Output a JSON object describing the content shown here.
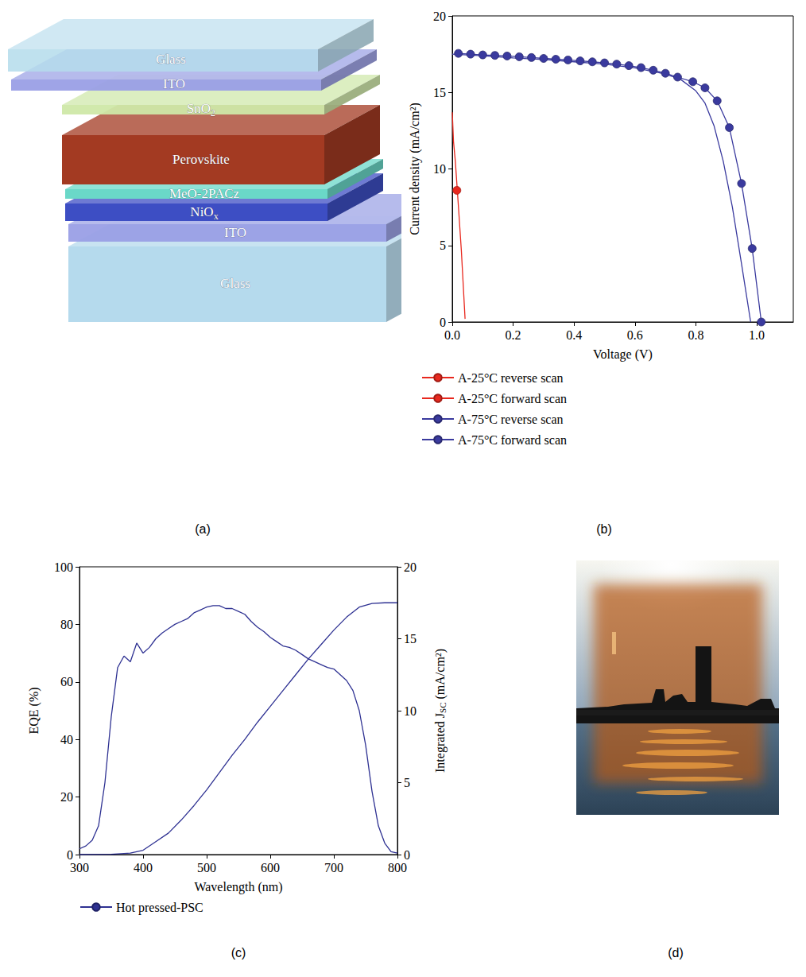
{
  "chart_data": [
    {
      "type": "line",
      "panel_label": "(b)",
      "x_label": "Voltage (V)",
      "y_label": "Current density (mA/cm²)",
      "xlim": [
        0,
        1.12
      ],
      "xticks": [
        {
          "value": 0,
          "label": "0.0"
        },
        0.2,
        0.4,
        0.6,
        0.8,
        {
          "value": 1,
          "label": "1.0"
        }
      ],
      "ylim": [
        0,
        20
      ],
      "yticks": [
        0,
        5,
        10,
        15,
        20
      ],
      "grid": false,
      "legend": "bottom-left",
      "series": [
        {
          "name": "A-25°C reverse scan",
          "color": "#e8281e",
          "marker": "circle",
          "line_style": "solid",
          "x": [
            0.015
          ],
          "values": [
            8.6
          ]
        },
        {
          "name": "A-25°C forward scan",
          "color": "#e8281e",
          "marker": "none",
          "line_style": "solid",
          "x": [
            0,
            0.004,
            0.01,
            0.02,
            0.03,
            0.042
          ],
          "values": [
            13.7,
            11.8,
            10.5,
            7.6,
            4.6,
            0.2
          ]
        },
        {
          "name": "A-75°C reverse scan",
          "color": "#3a3a9e",
          "marker": "circle",
          "line_style": "solid",
          "x": [
            0.02,
            0.06,
            0.1,
            0.14,
            0.18,
            0.22,
            0.26,
            0.3,
            0.34,
            0.38,
            0.42,
            0.46,
            0.5,
            0.54,
            0.58,
            0.62,
            0.66,
            0.7,
            0.74,
            0.79,
            0.83,
            0.87,
            0.91,
            0.95,
            0.985,
            1.015
          ],
          "values": [
            17.55,
            17.5,
            17.45,
            17.42,
            17.38,
            17.33,
            17.28,
            17.22,
            17.17,
            17.12,
            17.06,
            17.0,
            16.93,
            16.85,
            16.75,
            16.62,
            16.45,
            16.25,
            16.0,
            15.7,
            15.3,
            14.45,
            12.7,
            9.05,
            4.8,
            0
          ]
        },
        {
          "name": "A-75°C forward scan",
          "color": "#3a3a9e",
          "marker": "none",
          "line_style": "solid",
          "x": [
            0,
            0.1,
            0.2,
            0.3,
            0.4,
            0.5,
            0.6,
            0.7,
            0.75,
            0.8,
            0.83,
            0.86,
            0.89,
            0.92,
            0.95,
            0.98
          ],
          "values": [
            17.5,
            17.4,
            17.25,
            17.15,
            17.0,
            16.85,
            16.6,
            16.2,
            15.85,
            15.1,
            14.3,
            12.8,
            10.5,
            7.5,
            3.8,
            0
          ]
        }
      ]
    },
    {
      "type": "line",
      "panel_label": "(c)",
      "x_label": "Wavelength (nm)",
      "y_label": "EQE (%)",
      "y2_label": {
        "text": "Integrated J",
        "subscript": "SC",
        "suffix": " (mA/cm²)"
      },
      "xlim": [
        300,
        800
      ],
      "xticks": [
        300,
        400,
        500,
        600,
        700,
        800
      ],
      "ylim": [
        0,
        100
      ],
      "yticks": [
        0,
        20,
        40,
        60,
        80,
        100
      ],
      "y2lim": [
        0,
        20
      ],
      "y2ticks": [
        0,
        5,
        10,
        15,
        20
      ],
      "grid": false,
      "legend": "bottom-left",
      "series": [
        {
          "name": "Hot pressed-PSC",
          "color": "#2e3192",
          "marker": "none",
          "line_style": "solid",
          "x": [
            300,
            310,
            320,
            330,
            340,
            350,
            360,
            370,
            380,
            390,
            400,
            410,
            420,
            430,
            440,
            450,
            460,
            470,
            480,
            490,
            500,
            510,
            520,
            530,
            540,
            550,
            560,
            570,
            580,
            590,
            600,
            610,
            620,
            630,
            640,
            650,
            660,
            670,
            680,
            690,
            700,
            710,
            720,
            730,
            740,
            750,
            760,
            770,
            780,
            790,
            800
          ],
          "values": [
            2,
            3,
            5,
            10,
            25,
            48,
            65,
            69,
            67,
            73.5,
            70,
            72,
            75,
            77,
            78.5,
            80,
            81,
            82,
            84,
            85,
            86,
            86.5,
            86.5,
            85.5,
            85.5,
            84.5,
            83.5,
            81,
            79,
            77.5,
            75.5,
            74,
            72.5,
            72,
            71,
            69.5,
            68,
            67,
            66,
            65,
            64.5,
            62.5,
            60.5,
            57,
            50,
            38,
            22,
            10,
            4,
            1,
            0.5
          ]
        },
        {
          "color": "#2e3192",
          "marker": "none",
          "line_style": "solid",
          "axis": "y2",
          "x": [
            300,
            350,
            380,
            400,
            420,
            440,
            460,
            480,
            500,
            520,
            540,
            560,
            580,
            600,
            620,
            640,
            660,
            680,
            700,
            720,
            740,
            760,
            780,
            800
          ],
          "values": [
            0,
            0.02,
            0.1,
            0.3,
            0.9,
            1.5,
            2.4,
            3.4,
            4.5,
            5.7,
            6.9,
            8.0,
            9.2,
            10.3,
            11.4,
            12.5,
            13.6,
            14.6,
            15.6,
            16.5,
            17.2,
            17.45,
            17.5,
            17.5
          ]
        }
      ]
    }
  ],
  "diagram": {
    "panel_label": "(a)",
    "layers": [
      {
        "text": "Glass"
      },
      {
        "text": "ITO"
      },
      {
        "text": "SnO",
        "subscript": "2"
      },
      {
        "text": "Perovskite"
      },
      {
        "text": "MeO-2PACz"
      },
      {
        "text": "NiO",
        "subscript": "x"
      },
      {
        "text": "ITO"
      },
      {
        "text": "Glass"
      }
    ]
  },
  "photo": {
    "panel_label": "(d)"
  }
}
